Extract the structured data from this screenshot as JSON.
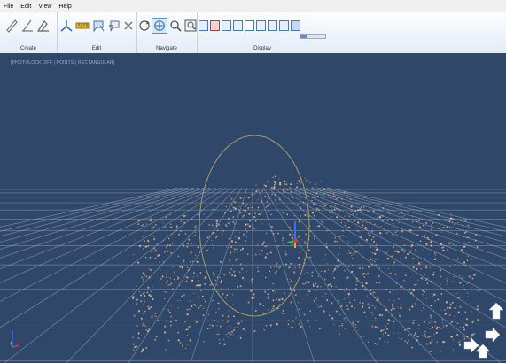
{
  "menu": [
    "File",
    "Edit",
    "View",
    "Help"
  ],
  "ribbon": {
    "groups": [
      {
        "label": "Create",
        "tools": [
          "pencil-icon",
          "line-icon",
          "draw-shape-icon"
        ]
      },
      {
        "label": "Edit",
        "tools": [
          "axes-icon",
          "ruler-icon",
          "lasso-icon",
          "lasso-minus-icon",
          "delete-icon"
        ]
      },
      {
        "label": "Navigate",
        "tools": [
          "orbit-icon",
          "pan-icon",
          "zoom-icon",
          "zoom-extents-icon"
        ]
      },
      {
        "label": "Display",
        "tools": [
          "display-mode-1",
          "display-mode-2",
          "display-mode-3",
          "display-mode-4",
          "display-mode-5",
          "display-mode-6",
          "display-mode-7",
          "display-mode-8",
          "display-mode-9"
        ]
      }
    ],
    "active_tool": "pan-icon",
    "point_size_slider": 0.3
  },
  "viewport": {
    "status": "[PHOTOLOCK OFF | POINTS | RECTANGULAR]",
    "colors": {
      "background": "#2f4768",
      "grid": "#c9d4e4",
      "points": "#e6b48e",
      "orbit_ring": "#a89a6c"
    }
  }
}
